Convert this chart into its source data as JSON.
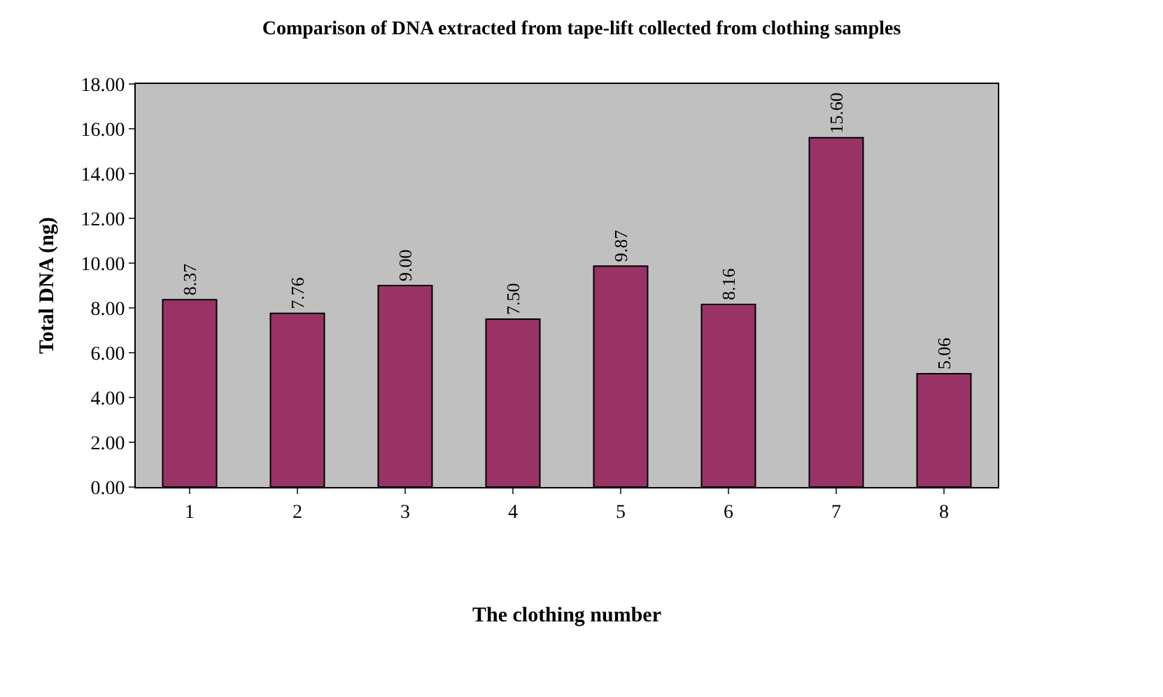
{
  "chart_data": {
    "type": "bar",
    "title": "Comparison of DNA extracted from tape-lift collected from clothing samples",
    "xlabel": "The clothing number",
    "ylabel": "Total DNA (ng)",
    "categories": [
      "1",
      "2",
      "3",
      "4",
      "5",
      "6",
      "7",
      "8"
    ],
    "series": [
      {
        "color": "#993366",
        "values": [
          8.37,
          7.76,
          9.0,
          7.5,
          9.87,
          8.16,
          15.6,
          5.06
        ],
        "value_labels": [
          "8.37",
          "7.76",
          "9.00",
          "7.50",
          "9.87",
          "8.16",
          "15.60",
          "5.06"
        ]
      }
    ],
    "ylim": [
      0,
      18
    ],
    "yticks": [
      {
        "value": 0,
        "label": "0.00"
      },
      {
        "value": 2,
        "label": "2.00"
      },
      {
        "value": 4,
        "label": "4.00"
      },
      {
        "value": 6,
        "label": "6.00"
      },
      {
        "value": 8,
        "label": "8.00"
      },
      {
        "value": 10,
        "label": "10.00"
      },
      {
        "value": 12,
        "label": "12.00"
      },
      {
        "value": 14,
        "label": "14.00"
      },
      {
        "value": 16,
        "label": "16.00"
      },
      {
        "value": 18,
        "label": "18.00"
      }
    ],
    "grid": false
  }
}
